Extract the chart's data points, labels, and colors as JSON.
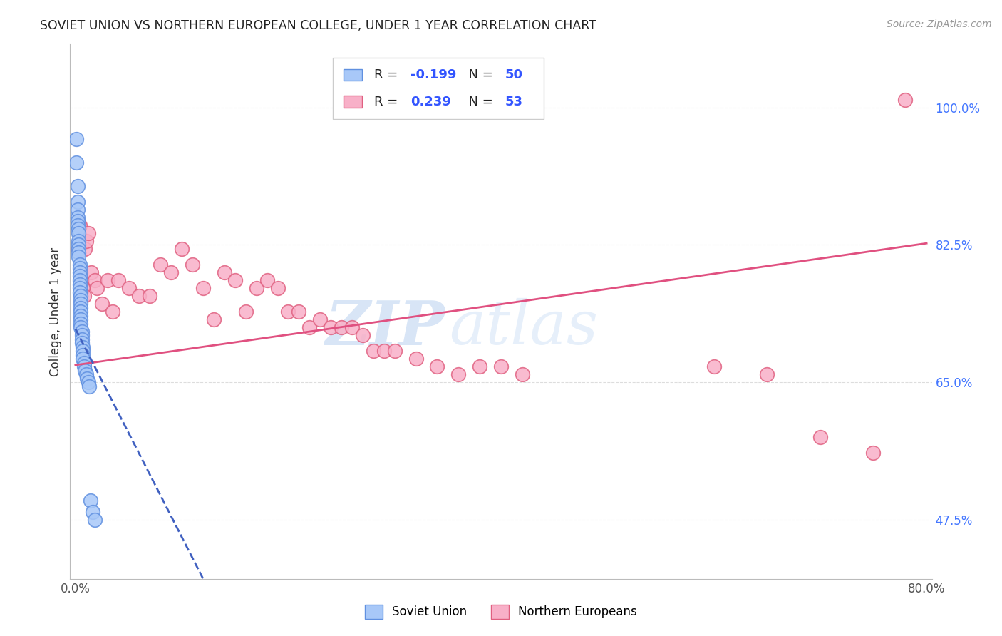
{
  "title": "SOVIET UNION VS NORTHERN EUROPEAN COLLEGE, UNDER 1 YEAR CORRELATION CHART",
  "source": "Source: ZipAtlas.com",
  "ylabel": "College, Under 1 year",
  "xlim": [
    -0.005,
    0.805
  ],
  "ylim": [
    0.4,
    1.08
  ],
  "yticks": [
    0.475,
    0.65,
    0.825,
    1.0
  ],
  "ytick_labels": [
    "47.5%",
    "65.0%",
    "82.5%",
    "100.0%"
  ],
  "xtick_positions": [
    0.0,
    0.1,
    0.2,
    0.3,
    0.4,
    0.5,
    0.6,
    0.7,
    0.8
  ],
  "xtick_labels": [
    "0.0%",
    "",
    "",
    "",
    "",
    "",
    "",
    "",
    "80.0%"
  ],
  "soviet_color": "#a8c8f8",
  "northern_color": "#f8b0c8",
  "soviet_edge": "#6090e0",
  "northern_edge": "#e06080",
  "soviet_line_color": "#4060c0",
  "northern_line_color": "#e05080",
  "soviet_R": -0.199,
  "soviet_N": 50,
  "northern_R": 0.239,
  "northern_N": 53,
  "watermark_zip": "ZIP",
  "watermark_atlas": "atlas",
  "soviet_points_x": [
    0.001,
    0.001,
    0.002,
    0.002,
    0.002,
    0.002,
    0.002,
    0.002,
    0.003,
    0.003,
    0.003,
    0.003,
    0.003,
    0.003,
    0.003,
    0.004,
    0.004,
    0.004,
    0.004,
    0.004,
    0.004,
    0.004,
    0.004,
    0.005,
    0.005,
    0.005,
    0.005,
    0.005,
    0.005,
    0.005,
    0.005,
    0.005,
    0.006,
    0.006,
    0.006,
    0.006,
    0.007,
    0.007,
    0.007,
    0.007,
    0.008,
    0.008,
    0.009,
    0.01,
    0.011,
    0.012,
    0.013,
    0.014,
    0.016,
    0.018
  ],
  "soviet_points_y": [
    0.96,
    0.93,
    0.9,
    0.88,
    0.87,
    0.86,
    0.855,
    0.85,
    0.845,
    0.84,
    0.83,
    0.825,
    0.82,
    0.815,
    0.81,
    0.8,
    0.795,
    0.79,
    0.785,
    0.78,
    0.775,
    0.77,
    0.765,
    0.76,
    0.755,
    0.75,
    0.745,
    0.74,
    0.735,
    0.73,
    0.725,
    0.72,
    0.715,
    0.71,
    0.705,
    0.7,
    0.695,
    0.69,
    0.685,
    0.68,
    0.675,
    0.67,
    0.665,
    0.66,
    0.655,
    0.65,
    0.645,
    0.5,
    0.485,
    0.475
  ],
  "northern_points_x": [
    0.003,
    0.004,
    0.005,
    0.006,
    0.007,
    0.008,
    0.009,
    0.01,
    0.012,
    0.015,
    0.018,
    0.02,
    0.025,
    0.03,
    0.035,
    0.04,
    0.05,
    0.06,
    0.07,
    0.08,
    0.09,
    0.1,
    0.11,
    0.12,
    0.13,
    0.14,
    0.15,
    0.16,
    0.17,
    0.18,
    0.19,
    0.2,
    0.21,
    0.22,
    0.23,
    0.24,
    0.25,
    0.26,
    0.27,
    0.28,
    0.29,
    0.3,
    0.32,
    0.34,
    0.36,
    0.38,
    0.4,
    0.42,
    0.6,
    0.65,
    0.7,
    0.75,
    0.78
  ],
  "northern_points_y": [
    0.82,
    0.85,
    0.79,
    0.78,
    0.77,
    0.76,
    0.82,
    0.83,
    0.84,
    0.79,
    0.78,
    0.77,
    0.75,
    0.78,
    0.74,
    0.78,
    0.77,
    0.76,
    0.76,
    0.8,
    0.79,
    0.82,
    0.8,
    0.77,
    0.73,
    0.79,
    0.78,
    0.74,
    0.77,
    0.78,
    0.77,
    0.74,
    0.74,
    0.72,
    0.73,
    0.72,
    0.72,
    0.72,
    0.71,
    0.69,
    0.69,
    0.69,
    0.68,
    0.67,
    0.66,
    0.67,
    0.67,
    0.66,
    0.67,
    0.66,
    0.58,
    0.56,
    1.01
  ],
  "northern_trend_x0": 0.0,
  "northern_trend_y0": 0.672,
  "northern_trend_x1": 0.8,
  "northern_trend_y1": 0.827,
  "soviet_trend_x0": 0.0,
  "soviet_trend_y0": 0.718,
  "soviet_trend_x1": 0.12,
  "soviet_trend_y1": 0.4
}
